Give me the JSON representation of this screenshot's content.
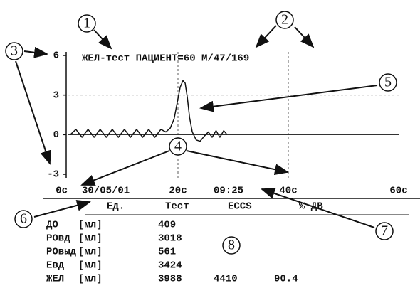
{
  "chart_data": {
    "type": "line",
    "title": "ЖЕЛ-тест ПАЦИЕНТ=60 М/47/169",
    "date": "30/05/01",
    "time": "09:25",
    "x": [
      0.5,
      1.5,
      2.6,
      3.7,
      4.8,
      5.9,
      7.0,
      8.1,
      9.2,
      10.3,
      11.4,
      12.5,
      13.6,
      14.7,
      15.8,
      16.9,
      17.8,
      18.6,
      19.3,
      19.9,
      20.4,
      20.9,
      21.3,
      21.7,
      22.1,
      22.6,
      23.3,
      24.0,
      24.8,
      25.5,
      26.2,
      26.9,
      27.6,
      28.3,
      28.9
    ],
    "values": [
      0,
      0.4,
      -0.2,
      0.4,
      -0.2,
      0.4,
      -0.2,
      0.4,
      -0.2,
      0.4,
      -0.2,
      0.4,
      -0.2,
      0.4,
      -0.2,
      0.4,
      0.2,
      0.5,
      1.2,
      2.5,
      3.6,
      4.1,
      3.9,
      2.8,
      1.3,
      0.2,
      -0.4,
      -0.5,
      -0.1,
      0.2,
      -0.2,
      0.3,
      -0.2,
      0.3,
      0
    ],
    "color": "#111111",
    "xlim": [
      0,
      60
    ],
    "xticks": [
      {
        "value": 0,
        "label": "0с"
      },
      {
        "value": 20,
        "label": "20с"
      },
      {
        "value": 40,
        "label": "40с"
      },
      {
        "value": 60,
        "label": "60с"
      }
    ],
    "ylim": [
      -3,
      6
    ],
    "yticks": [
      6,
      3,
      0,
      -3
    ],
    "grid": true
  },
  "table": {
    "header": [
      "Ед.",
      "Тест",
      "ECCS",
      "% ДВ"
    ],
    "rows": [
      [
        "ДО",
        "[мл]",
        "409"
      ],
      [
        "РОвд",
        "[мл]",
        "3018"
      ],
      [
        "РОвыд",
        "[мл]",
        "561"
      ],
      [
        "Евд",
        "[мл]",
        "3424"
      ],
      [
        "ЖЕЛ",
        "[мл]",
        "3988",
        "4410",
        "90.4"
      ]
    ]
  },
  "callouts": [
    "1",
    "2",
    "3",
    "4",
    "5",
    "6",
    "7",
    "8"
  ]
}
